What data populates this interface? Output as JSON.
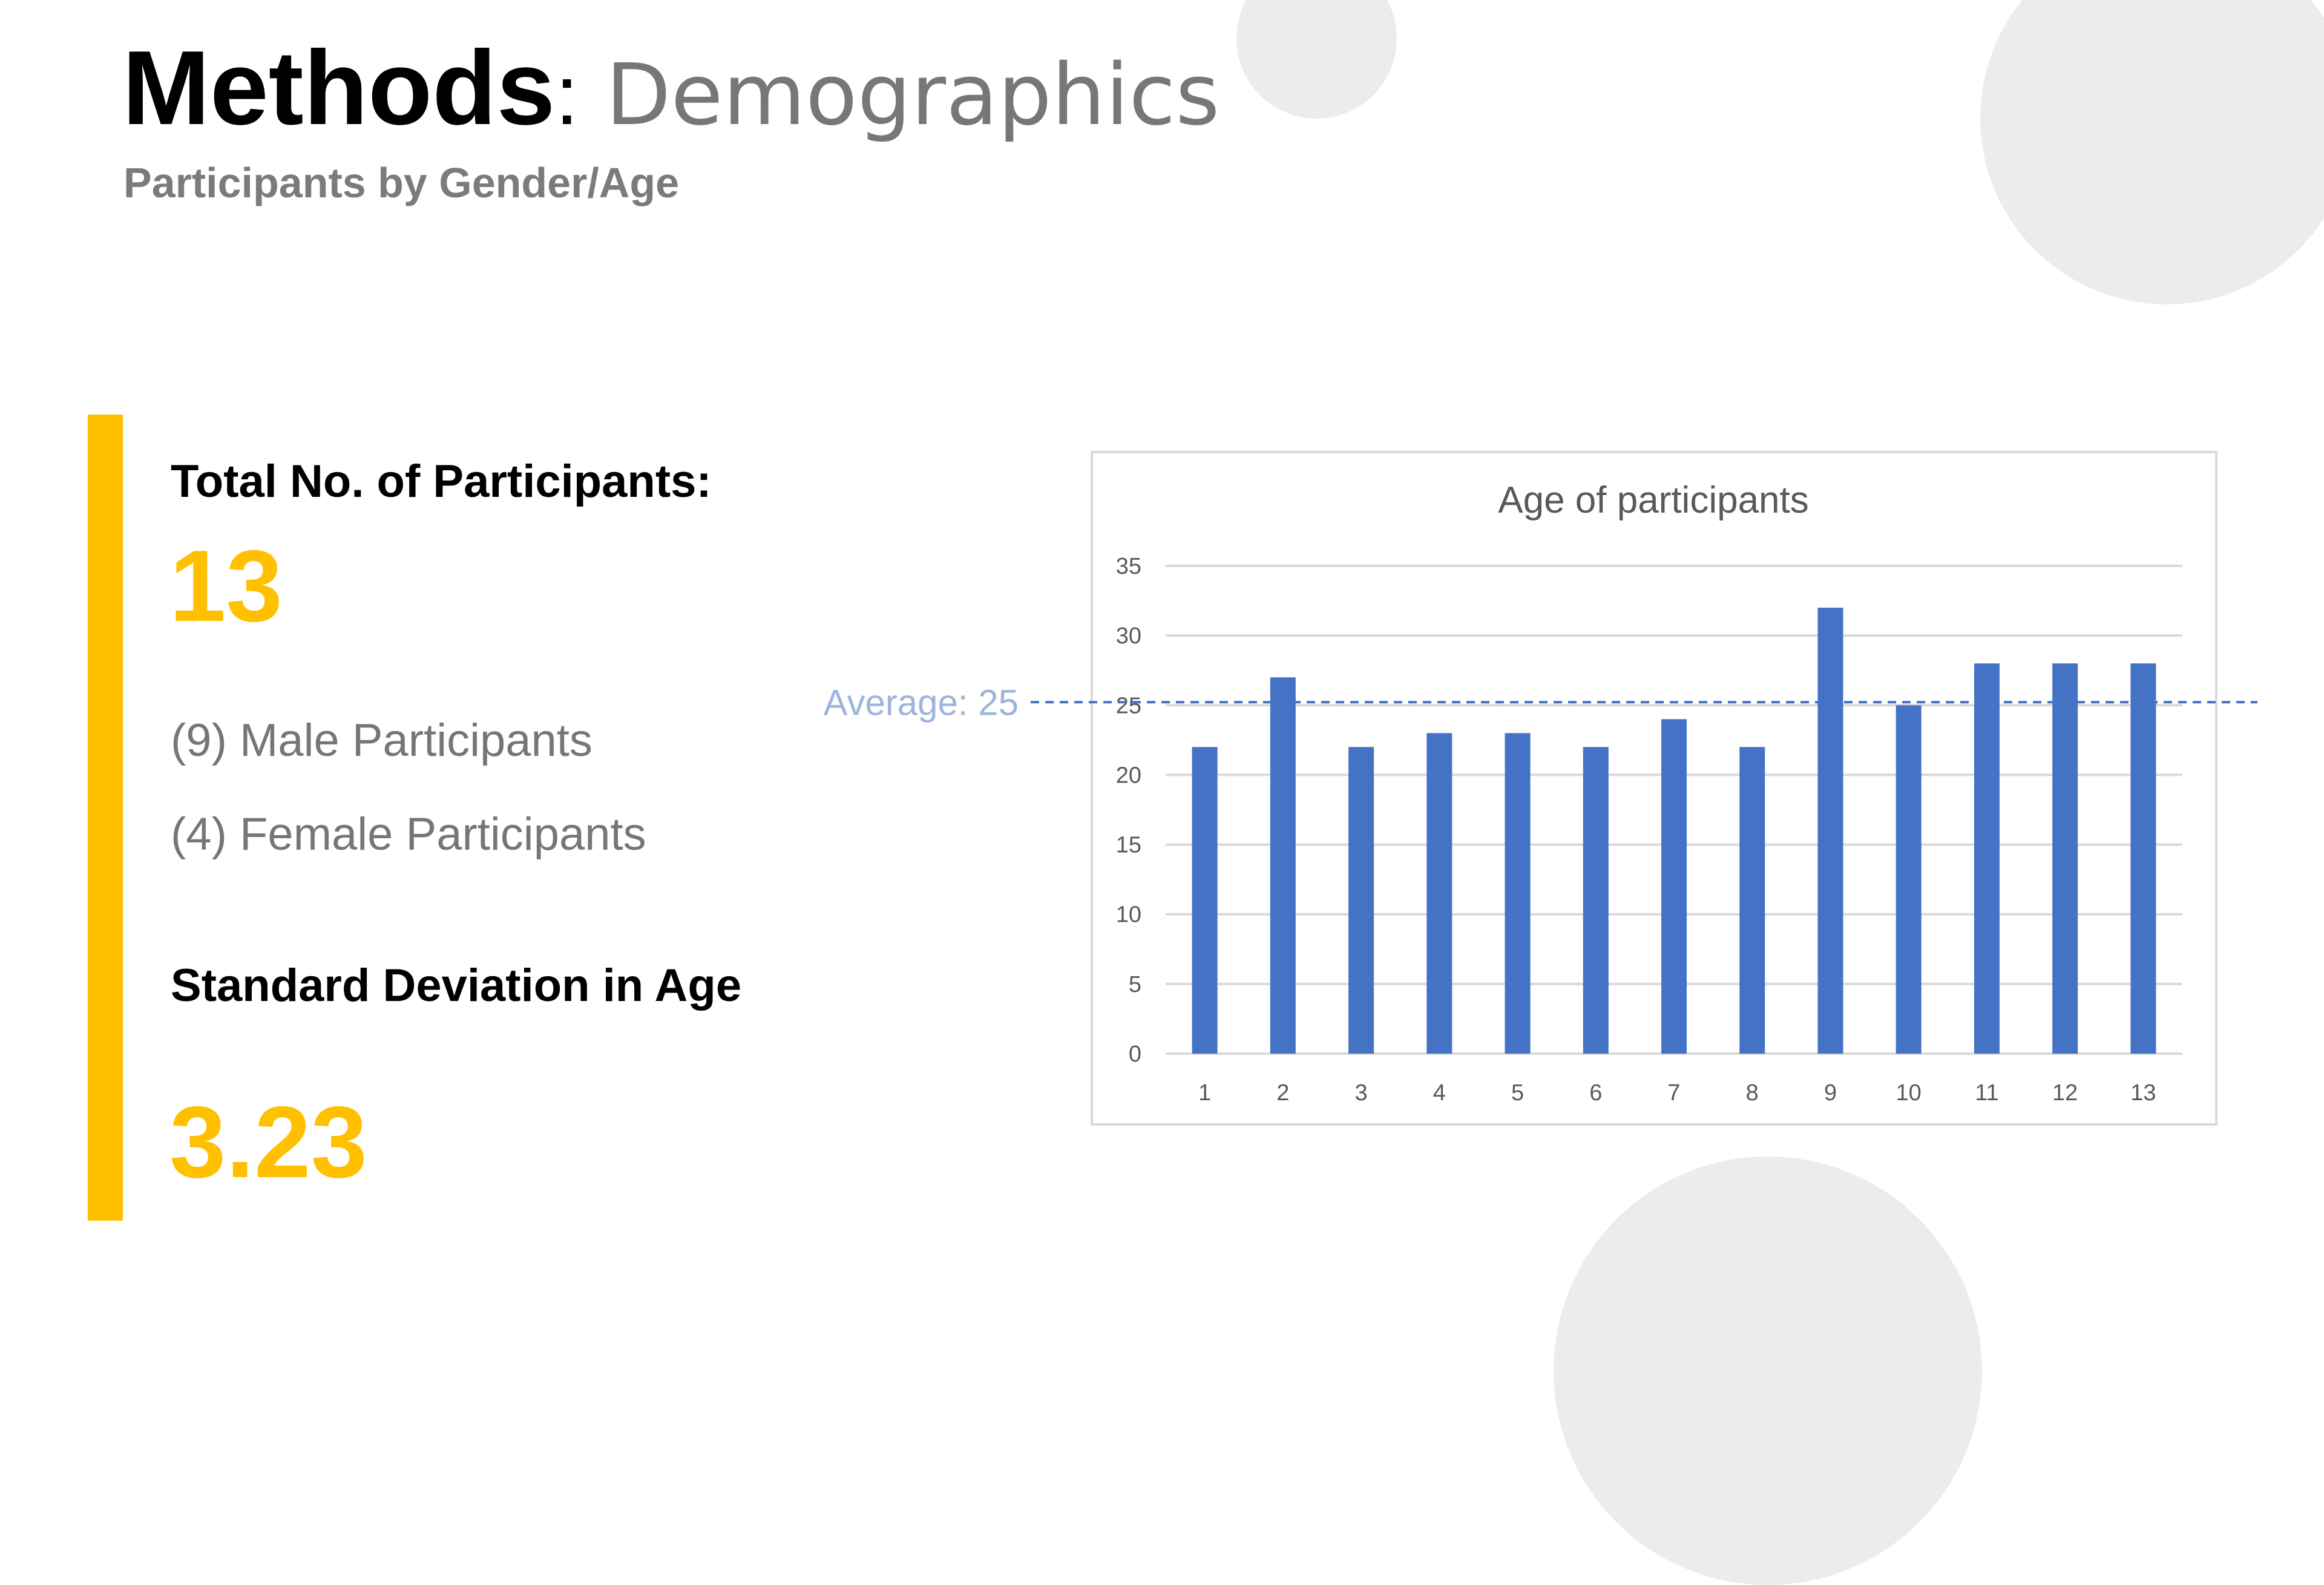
{
  "slide": {
    "title_strong": "Methods",
    "title_colon": ":",
    "title_light": " Demographics",
    "subtitle": "Participants by Gender/Age"
  },
  "stats": {
    "total_label": "Total No. of Participants:",
    "total_value": "13",
    "male_text": "(9) Male Participants",
    "female_text": "(4) Female Participants",
    "sd_label": "Standard Deviation in Age",
    "sd_value": "3.23"
  },
  "colors": {
    "accent": "#ffc000",
    "bar": "#4472c4",
    "average_line": "#4472c4",
    "average_label": "#9db4dc"
  },
  "chart_data": {
    "type": "bar",
    "title": "Age of participants",
    "xlabel": "",
    "ylabel": "",
    "categories": [
      "1",
      "2",
      "3",
      "4",
      "5",
      "6",
      "7",
      "8",
      "9",
      "10",
      "11",
      "12",
      "13"
    ],
    "values": [
      22,
      27,
      22,
      23,
      23,
      22,
      24,
      22,
      32,
      25,
      28,
      28,
      28
    ],
    "ylim": [
      0,
      35
    ],
    "yticks": [
      0,
      5,
      10,
      15,
      20,
      25,
      30,
      35
    ],
    "grid": true,
    "legend": "none",
    "annotations": [
      {
        "text": "Average: 25",
        "type": "horizontal-dashed-line",
        "value": 25
      }
    ]
  }
}
